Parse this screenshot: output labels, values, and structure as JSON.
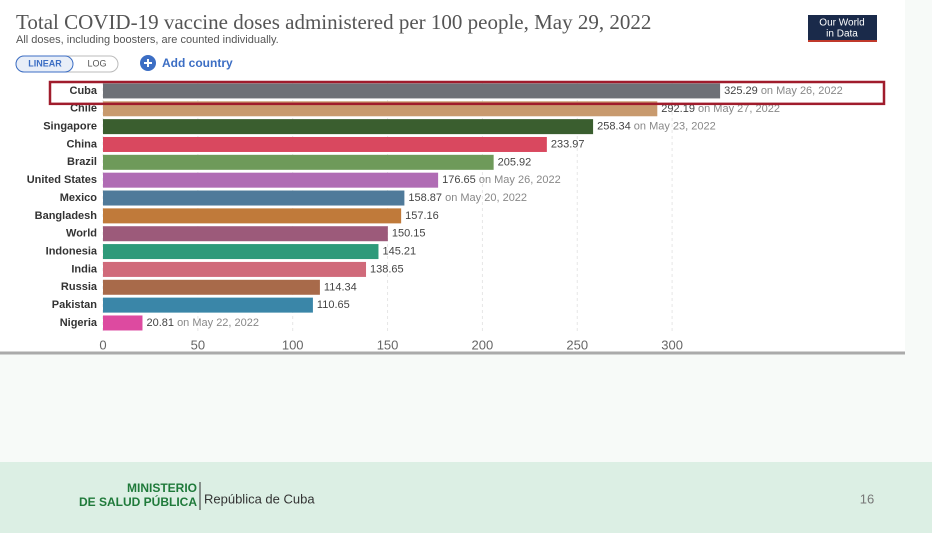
{
  "chart_data": {
    "type": "bar",
    "orientation": "horizontal",
    "title": "Total COVID-19 vaccine doses administered per 100 people, May 29, 2022",
    "subtitle": "All doses, including boosters, are counted individually.",
    "scale_buttons": [
      "LINEAR",
      "LOG"
    ],
    "add_country": "Add country",
    "logo": [
      "Our World",
      "in Data"
    ],
    "categories": [
      "Cuba",
      "Chile",
      "Singapore",
      "China",
      "Brazil",
      "United States",
      "Mexico",
      "Bangladesh",
      "World",
      "Indonesia",
      "India",
      "Russia",
      "Pakistan",
      "Nigeria"
    ],
    "values": [
      325.29,
      292.19,
      258.34,
      233.97,
      205.92,
      176.65,
      158.87,
      157.16,
      150.15,
      145.21,
      138.65,
      114.34,
      110.65,
      20.81
    ],
    "value_notes": [
      "on May 26, 2022",
      "on May 27, 2022",
      "on May 23, 2022",
      null,
      null,
      "on May 26, 2022",
      "on May 20, 2022",
      null,
      null,
      null,
      null,
      null,
      null,
      "on May 22, 2022"
    ],
    "colors": [
      "#6e7177",
      "#c89a6e",
      "#3a5e2f",
      "#d9485f",
      "#6e9a5a",
      "#b06cb4",
      "#4f7a9a",
      "#c07a3a",
      "#9c5a7a",
      "#2e9a7a",
      "#d06a7a",
      "#a86a4a",
      "#3a86a8",
      "#dd4aa0"
    ],
    "xlim": [
      0,
      340
    ],
    "xticks": [
      0,
      50,
      100,
      150,
      200,
      250,
      300
    ],
    "grid": true
  },
  "slide": {
    "ministry": [
      "MINISTERIO",
      "DE SALUD PÚBLICA"
    ],
    "country": "República de Cuba",
    "page": "16"
  }
}
